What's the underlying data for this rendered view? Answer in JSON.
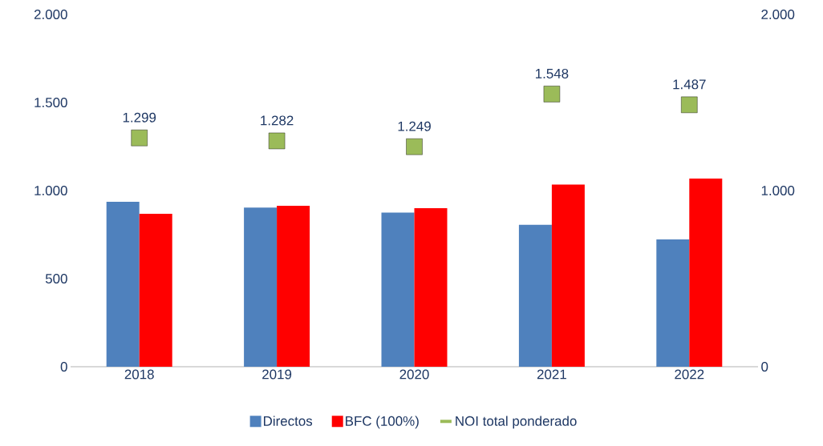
{
  "chart_data": {
    "type": "bar",
    "categories": [
      "2018",
      "2019",
      "2020",
      "2021",
      "2022"
    ],
    "series": [
      {
        "name": "Directos",
        "color": "#4f81bd",
        "values": [
          936,
          903,
          875,
          806,
          723
        ]
      },
      {
        "name": "BFC (100%)",
        "color": "#ff0000",
        "values": [
          868,
          914,
          900,
          1034,
          1068
        ]
      },
      {
        "name": "NOI total ponderado",
        "type": "scatter",
        "axis": "y2",
        "color": "#9bbb59",
        "values": [
          1299,
          1282,
          1249,
          1548,
          1487
        ],
        "value_labels": [
          "1.299",
          "1.282",
          "1.249",
          "1.548",
          "1.487"
        ]
      }
    ],
    "ylim": [
      0,
      2000
    ],
    "yticks": [
      {
        "value": 0,
        "label": "0"
      },
      {
        "value": 500,
        "label": "500"
      },
      {
        "value": 1000,
        "label": "1.000"
      },
      {
        "value": 1500,
        "label": "1.500"
      },
      {
        "value": 2000,
        "label": "2.000"
      }
    ],
    "y2lim": [
      0,
      2000
    ],
    "y2ticks": [
      {
        "value": 0,
        "label": "0"
      },
      {
        "value": 1000,
        "label": "1.000"
      },
      {
        "value": 2000,
        "label": "2.000"
      }
    ],
    "grid": false,
    "legend": "bottom"
  }
}
